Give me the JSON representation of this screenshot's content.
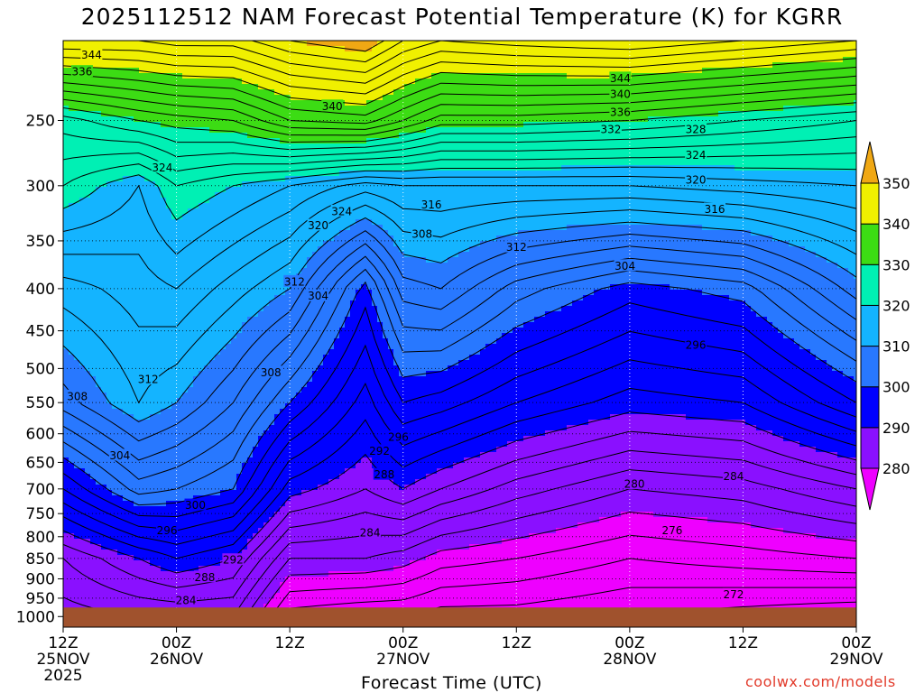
{
  "chart_data": {
    "type": "heatmap",
    "title": "2025112512 NAM Forecast Potential Temperature (K) for KGRR",
    "xlabel": "Forecast Time (UTC)",
    "credit": "coolwx.com/models",
    "y_axis": {
      "scale": "pressure-log",
      "ticks": [
        250,
        300,
        350,
        400,
        450,
        500,
        550,
        600,
        650,
        700,
        750,
        800,
        850,
        900,
        950,
        1000
      ],
      "range": [
        200,
        1030
      ]
    },
    "x_axis": {
      "ticks": [
        {
          "hour": 0,
          "lines": [
            "12Z",
            "25NOV",
            "2025"
          ]
        },
        {
          "hour": 12,
          "lines": [
            "00Z",
            "26NOV"
          ]
        },
        {
          "hour": 24,
          "lines": [
            "12Z"
          ]
        },
        {
          "hour": 36,
          "lines": [
            "00Z",
            "27NOV"
          ]
        },
        {
          "hour": 48,
          "lines": [
            "12Z"
          ]
        },
        {
          "hour": 60,
          "lines": [
            "00Z",
            "28NOV"
          ]
        },
        {
          "hour": 72,
          "lines": [
            "12Z"
          ]
        },
        {
          "hour": 84,
          "lines": [
            "00Z",
            "29NOV"
          ]
        }
      ],
      "range_hours": [
        0,
        84
      ]
    },
    "colorbar": {
      "levels": [
        280,
        290,
        300,
        310,
        320,
        330,
        340,
        350
      ],
      "colors": [
        "#ee00ff",
        "#8a10ff",
        "#0000ff",
        "#2878ff",
        "#14b4ff",
        "#00f0b4",
        "#3cdc14",
        "#f0f000",
        "#f0a814"
      ]
    },
    "profiles": [
      {
        "hour": 0,
        "theta": [
          [
            1000,
            283
          ],
          [
            850,
            286
          ],
          [
            700,
            296
          ],
          [
            550,
            307
          ],
          [
            400,
            313
          ],
          [
            300,
            322
          ],
          [
            250,
            327
          ],
          [
            200,
            346
          ]
        ]
      },
      {
        "hour": 8,
        "theta": [
          [
            1000,
            284
          ],
          [
            850,
            290
          ],
          [
            700,
            303
          ],
          [
            550,
            312
          ],
          [
            400,
            315
          ],
          [
            300,
            318
          ],
          [
            250,
            330
          ],
          [
            200,
            346
          ]
        ]
      },
      {
        "hour": 12,
        "theta": [
          [
            1000,
            284
          ],
          [
            850,
            292
          ],
          [
            700,
            302
          ],
          [
            550,
            310
          ],
          [
            400,
            316
          ],
          [
            300,
            322
          ],
          [
            250,
            331
          ],
          [
            200,
            347
          ]
        ]
      },
      {
        "hour": 18,
        "theta": [
          [
            1000,
            284
          ],
          [
            850,
            290
          ],
          [
            700,
            300
          ],
          [
            550,
            306
          ],
          [
            400,
            313
          ],
          [
            300,
            320
          ],
          [
            250,
            332
          ],
          [
            200,
            347
          ]
        ]
      },
      {
        "hour": 24,
        "theta": [
          [
            1000,
            275
          ],
          [
            850,
            282
          ],
          [
            700,
            291
          ],
          [
            550,
            300
          ],
          [
            400,
            310
          ],
          [
            300,
            318
          ],
          [
            250,
            336
          ],
          [
            200,
            350
          ]
        ]
      },
      {
        "hour": 32,
        "theta": [
          [
            1000,
            274
          ],
          [
            850,
            282
          ],
          [
            700,
            288
          ],
          [
            550,
            293
          ],
          [
            400,
            299
          ],
          [
            300,
            315
          ],
          [
            250,
            337
          ],
          [
            200,
            352
          ]
        ]
      },
      {
        "hour": 36,
        "theta": [
          [
            1000,
            274
          ],
          [
            850,
            281
          ],
          [
            700,
            290
          ],
          [
            550,
            298
          ],
          [
            400,
            307
          ],
          [
            300,
            316
          ],
          [
            250,
            334
          ],
          [
            200,
            348
          ]
        ]
      },
      {
        "hour": 40,
        "theta": [
          [
            1000,
            273
          ],
          [
            850,
            279
          ],
          [
            700,
            288
          ],
          [
            550,
            297
          ],
          [
            400,
            308
          ],
          [
            300,
            316
          ],
          [
            250,
            331
          ],
          [
            200,
            346
          ]
        ]
      },
      {
        "hour": 48,
        "theta": [
          [
            1000,
            273
          ],
          [
            850,
            278
          ],
          [
            700,
            285
          ],
          [
            550,
            294
          ],
          [
            400,
            303
          ],
          [
            300,
            316
          ],
          [
            250,
            331
          ],
          [
            200,
            347
          ]
        ]
      },
      {
        "hour": 60,
        "theta": [
          [
            1000,
            272
          ],
          [
            850,
            276
          ],
          [
            700,
            282
          ],
          [
            550,
            291
          ],
          [
            400,
            299
          ],
          [
            300,
            316
          ],
          [
            250,
            330
          ],
          [
            200,
            348
          ]
        ]
      },
      {
        "hour": 72,
        "theta": [
          [
            1000,
            271
          ],
          [
            850,
            277
          ],
          [
            700,
            283
          ],
          [
            550,
            292
          ],
          [
            400,
            301
          ],
          [
            300,
            317
          ],
          [
            250,
            328
          ],
          [
            200,
            346
          ]
        ]
      },
      {
        "hour": 84,
        "theta": [
          [
            1000,
            270
          ],
          [
            850,
            278
          ],
          [
            700,
            286
          ],
          [
            550,
            298
          ],
          [
            400,
            309
          ],
          [
            300,
            318
          ],
          [
            250,
            326
          ],
          [
            200,
            344
          ]
        ]
      }
    ],
    "contour_labels": [
      {
        "hour": 3.0,
        "p": 208,
        "text": "344"
      },
      {
        "hour": 2.0,
        "p": 218,
        "text": "336"
      },
      {
        "hour": 28.5,
        "p": 240,
        "text": "340"
      },
      {
        "hour": 59.0,
        "p": 222,
        "text": "344"
      },
      {
        "hour": 59.0,
        "p": 232,
        "text": "340"
      },
      {
        "hour": 59.0,
        "p": 244,
        "text": "336"
      },
      {
        "hour": 58.0,
        "p": 256,
        "text": "332"
      },
      {
        "hour": 67.0,
        "p": 256,
        "text": "328"
      },
      {
        "hour": 67.0,
        "p": 275,
        "text": "324"
      },
      {
        "hour": 67.0,
        "p": 295,
        "text": "320"
      },
      {
        "hour": 69.0,
        "p": 320,
        "text": "316"
      },
      {
        "hour": 10.5,
        "p": 285,
        "text": "324"
      },
      {
        "hour": 29.5,
        "p": 322,
        "text": "324"
      },
      {
        "hour": 27.0,
        "p": 335,
        "text": "320"
      },
      {
        "hour": 39.0,
        "p": 316,
        "text": "316"
      },
      {
        "hour": 38.0,
        "p": 343,
        "text": "308"
      },
      {
        "hour": 48.0,
        "p": 356,
        "text": "312"
      },
      {
        "hour": 59.5,
        "p": 375,
        "text": "304"
      },
      {
        "hour": 24.5,
        "p": 392,
        "text": "312"
      },
      {
        "hour": 27.0,
        "p": 408,
        "text": "304"
      },
      {
        "hour": 67.0,
        "p": 468,
        "text": "296"
      },
      {
        "hour": 9.0,
        "p": 515,
        "text": "312"
      },
      {
        "hour": 22.0,
        "p": 505,
        "text": "308"
      },
      {
        "hour": 1.5,
        "p": 540,
        "text": "308"
      },
      {
        "hour": 6.0,
        "p": 637,
        "text": "304"
      },
      {
        "hour": 35.5,
        "p": 605,
        "text": "296"
      },
      {
        "hour": 33.5,
        "p": 629,
        "text": "292"
      },
      {
        "hour": 34.0,
        "p": 672,
        "text": "288"
      },
      {
        "hour": 60.5,
        "p": 690,
        "text": "280"
      },
      {
        "hour": 71.0,
        "p": 675,
        "text": "284"
      },
      {
        "hour": 14.0,
        "p": 732,
        "text": "300"
      },
      {
        "hour": 11.0,
        "p": 785,
        "text": "296"
      },
      {
        "hour": 32.5,
        "p": 790,
        "text": "284"
      },
      {
        "hour": 64.5,
        "p": 785,
        "text": "276"
      },
      {
        "hour": 18.0,
        "p": 853,
        "text": "292"
      },
      {
        "hour": 15.0,
        "p": 895,
        "text": "288"
      },
      {
        "hour": 13.0,
        "p": 955,
        "text": "284"
      },
      {
        "hour": 71.0,
        "p": 940,
        "text": "272"
      }
    ]
  }
}
